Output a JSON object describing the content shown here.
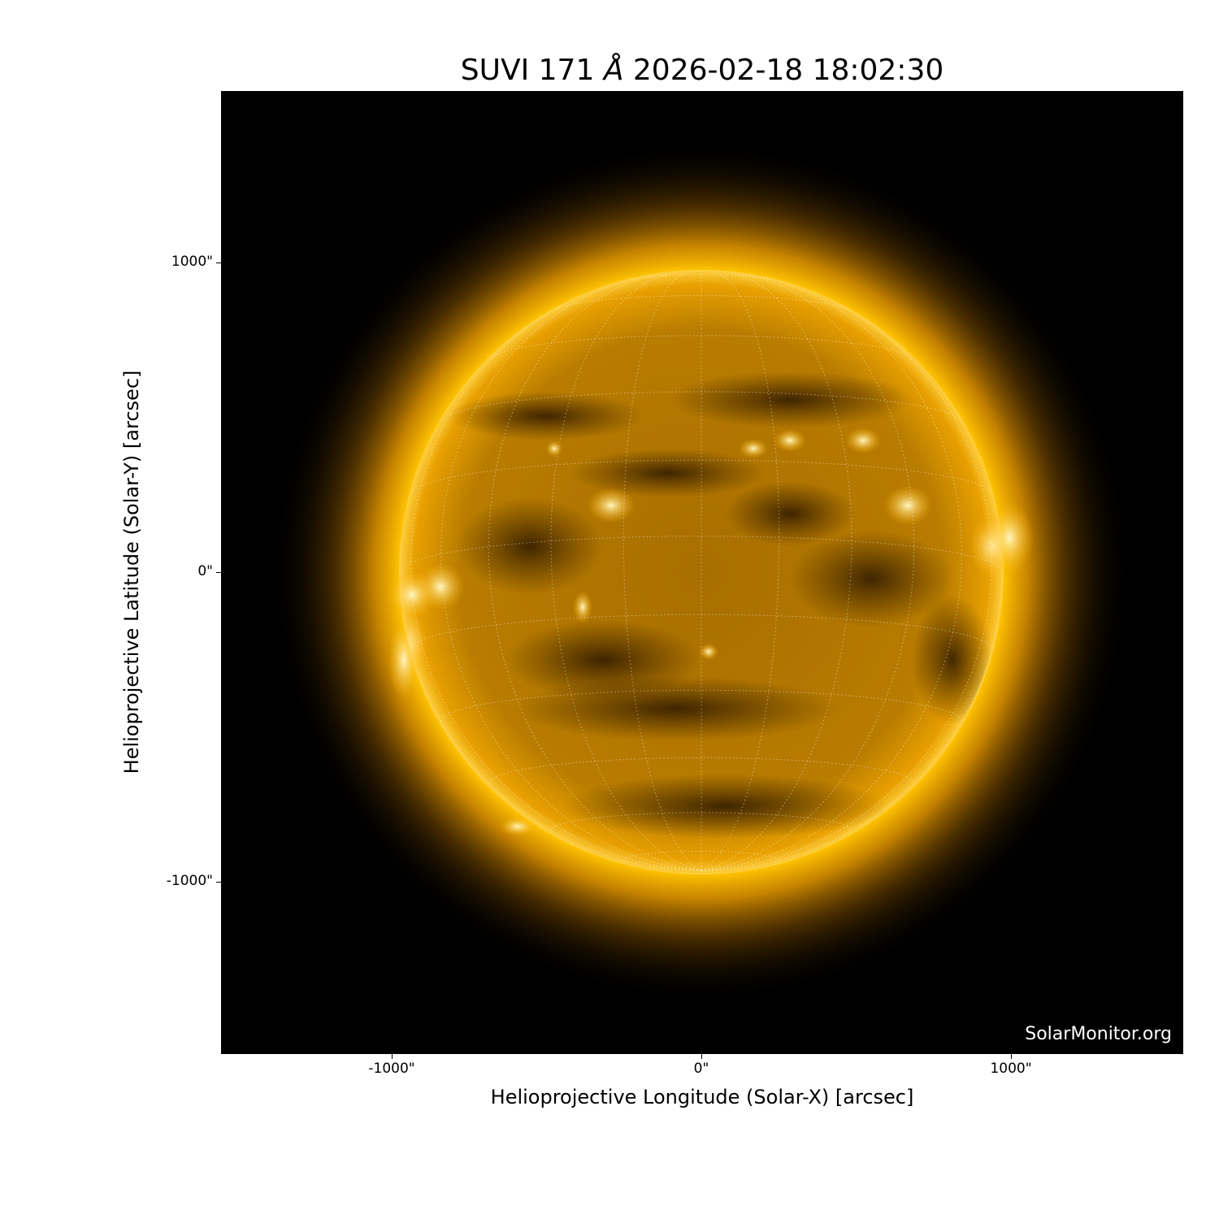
{
  "title": {
    "prefix": "SUVI 171",
    "unit": "Å",
    "timestamp": "2026-02-18 18:02:30"
  },
  "axes": {
    "xlabel": "Helioprojective Longitude (Solar-X) [arcsec]",
    "ylabel": "Helioprojective Latitude (Solar-Y) [arcsec]",
    "xlim": [
      -1550,
      1550
    ],
    "ylim": [
      -1550,
      1550
    ],
    "xticks": [
      {
        "value": -1000,
        "label": "-1000\""
      },
      {
        "value": 0,
        "label": "0\""
      },
      {
        "value": 1000,
        "label": "1000\""
      }
    ],
    "yticks": [
      {
        "value": 1000,
        "label": "1000\""
      },
      {
        "value": 0,
        "label": "0\""
      },
      {
        "value": -1000,
        "label": "-1000\""
      }
    ]
  },
  "image": {
    "subject": "sun",
    "colormap": "sdoaia171",
    "disk_color": "#e8a000",
    "background": "#000000",
    "grid": "heliographic, dotted"
  },
  "watermark": "SolarMonitor.org"
}
